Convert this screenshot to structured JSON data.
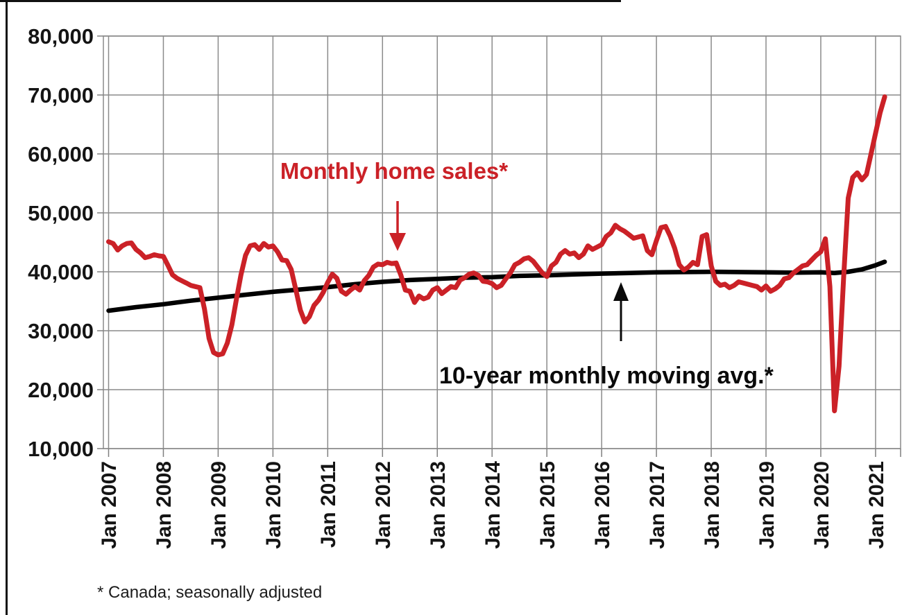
{
  "chart_data": {
    "type": "line",
    "x_tick_labels": [
      "Jan 2007",
      "Jan 2008",
      "Jan 2009",
      "Jan 2010",
      "Jan 2011",
      "Jan 2012",
      "Jan 2013",
      "Jan 2014",
      "Jan 2015",
      "Jan 2016",
      "Jan 2017",
      "Jan 2018",
      "Jan 2019",
      "Jan 2020",
      "Jan 2021"
    ],
    "y_tick_labels": [
      "80,000",
      "70,000",
      "60,000",
      "50,000",
      "40,000",
      "30,000",
      "20,000",
      "10,000"
    ],
    "y_range": [
      10000,
      80000
    ],
    "grid": "on",
    "legend_position": "inline-annotations",
    "series": [
      {
        "name": "Monthly home sales*",
        "color": "#cb2127",
        "x_unit": "months since Jan 2007",
        "monthly_values": [
          45100,
          44800,
          43700,
          44400,
          44800,
          44900,
          43800,
          43200,
          42400,
          42600,
          42900,
          42700,
          42600,
          41100,
          39500,
          38900,
          38500,
          38100,
          37700,
          37500,
          37300,
          33700,
          28700,
          26300,
          25900,
          26100,
          27900,
          31000,
          35300,
          39500,
          42800,
          44400,
          44600,
          43800,
          44800,
          44200,
          44400,
          43400,
          42000,
          41900,
          40400,
          37000,
          33500,
          31500,
          32400,
          34300,
          35200,
          36500,
          38200,
          39600,
          38900,
          36700,
          36200,
          36900,
          37500,
          36900,
          38500,
          39400,
          40800,
          41300,
          41200,
          41600,
          41400,
          41500,
          39500,
          36900,
          36700,
          34800,
          35900,
          35400,
          35700,
          36900,
          37300,
          36300,
          36900,
          37500,
          37300,
          38600,
          39000,
          39600,
          39800,
          39400,
          38400,
          38300,
          38000,
          37300,
          37700,
          38800,
          39800,
          41200,
          41600,
          42200,
          42400,
          41800,
          40800,
          39800,
          39200,
          41000,
          41600,
          43000,
          43600,
          43000,
          43200,
          42400,
          43000,
          44400,
          43800,
          44200,
          44600,
          46000,
          46600,
          47900,
          47300,
          46900,
          46300,
          45700,
          45900,
          46100,
          43600,
          42900,
          45300,
          47500,
          47700,
          46100,
          44000,
          41200,
          40300,
          40800,
          41600,
          41200,
          46000,
          46300,
          41000,
          38400,
          37700,
          37900,
          37300,
          37700,
          38300,
          38100,
          37900,
          37700,
          37500,
          36900,
          37600,
          36700,
          37100,
          37700,
          38800,
          39000,
          39800,
          40400,
          41000,
          41200,
          42000,
          42800,
          43400,
          45600,
          37500,
          16400,
          24000,
          39000,
          52500,
          56000,
          56800,
          55600,
          56500,
          60000,
          63500,
          67000,
          69700
        ]
      },
      {
        "name": "10-year monthly moving avg.*",
        "color": "#000000",
        "x_unit": "months since Jan 2007",
        "anchor_points": [
          [
            0,
            33400
          ],
          [
            6,
            34000
          ],
          [
            12,
            34500
          ],
          [
            18,
            35100
          ],
          [
            24,
            35600
          ],
          [
            30,
            36100
          ],
          [
            36,
            36600
          ],
          [
            42,
            37000
          ],
          [
            48,
            37400
          ],
          [
            54,
            37900
          ],
          [
            60,
            38300
          ],
          [
            66,
            38600
          ],
          [
            72,
            38800
          ],
          [
            78,
            39000
          ],
          [
            84,
            39100
          ],
          [
            90,
            39300
          ],
          [
            96,
            39400
          ],
          [
            102,
            39550
          ],
          [
            108,
            39700
          ],
          [
            114,
            39800
          ],
          [
            120,
            39900
          ],
          [
            126,
            39950
          ],
          [
            132,
            40000
          ],
          [
            138,
            39950
          ],
          [
            144,
            39900
          ],
          [
            150,
            39850
          ],
          [
            156,
            39900
          ],
          [
            159,
            39800
          ],
          [
            162,
            40000
          ],
          [
            165,
            40400
          ],
          [
            168,
            41100
          ],
          [
            170,
            41700
          ]
        ]
      }
    ],
    "footnote": "* Canada; seasonally adjusted"
  },
  "annotations": {
    "sales_label": "Monthly home sales*",
    "avg_label": "10-year monthly moving avg.*"
  }
}
